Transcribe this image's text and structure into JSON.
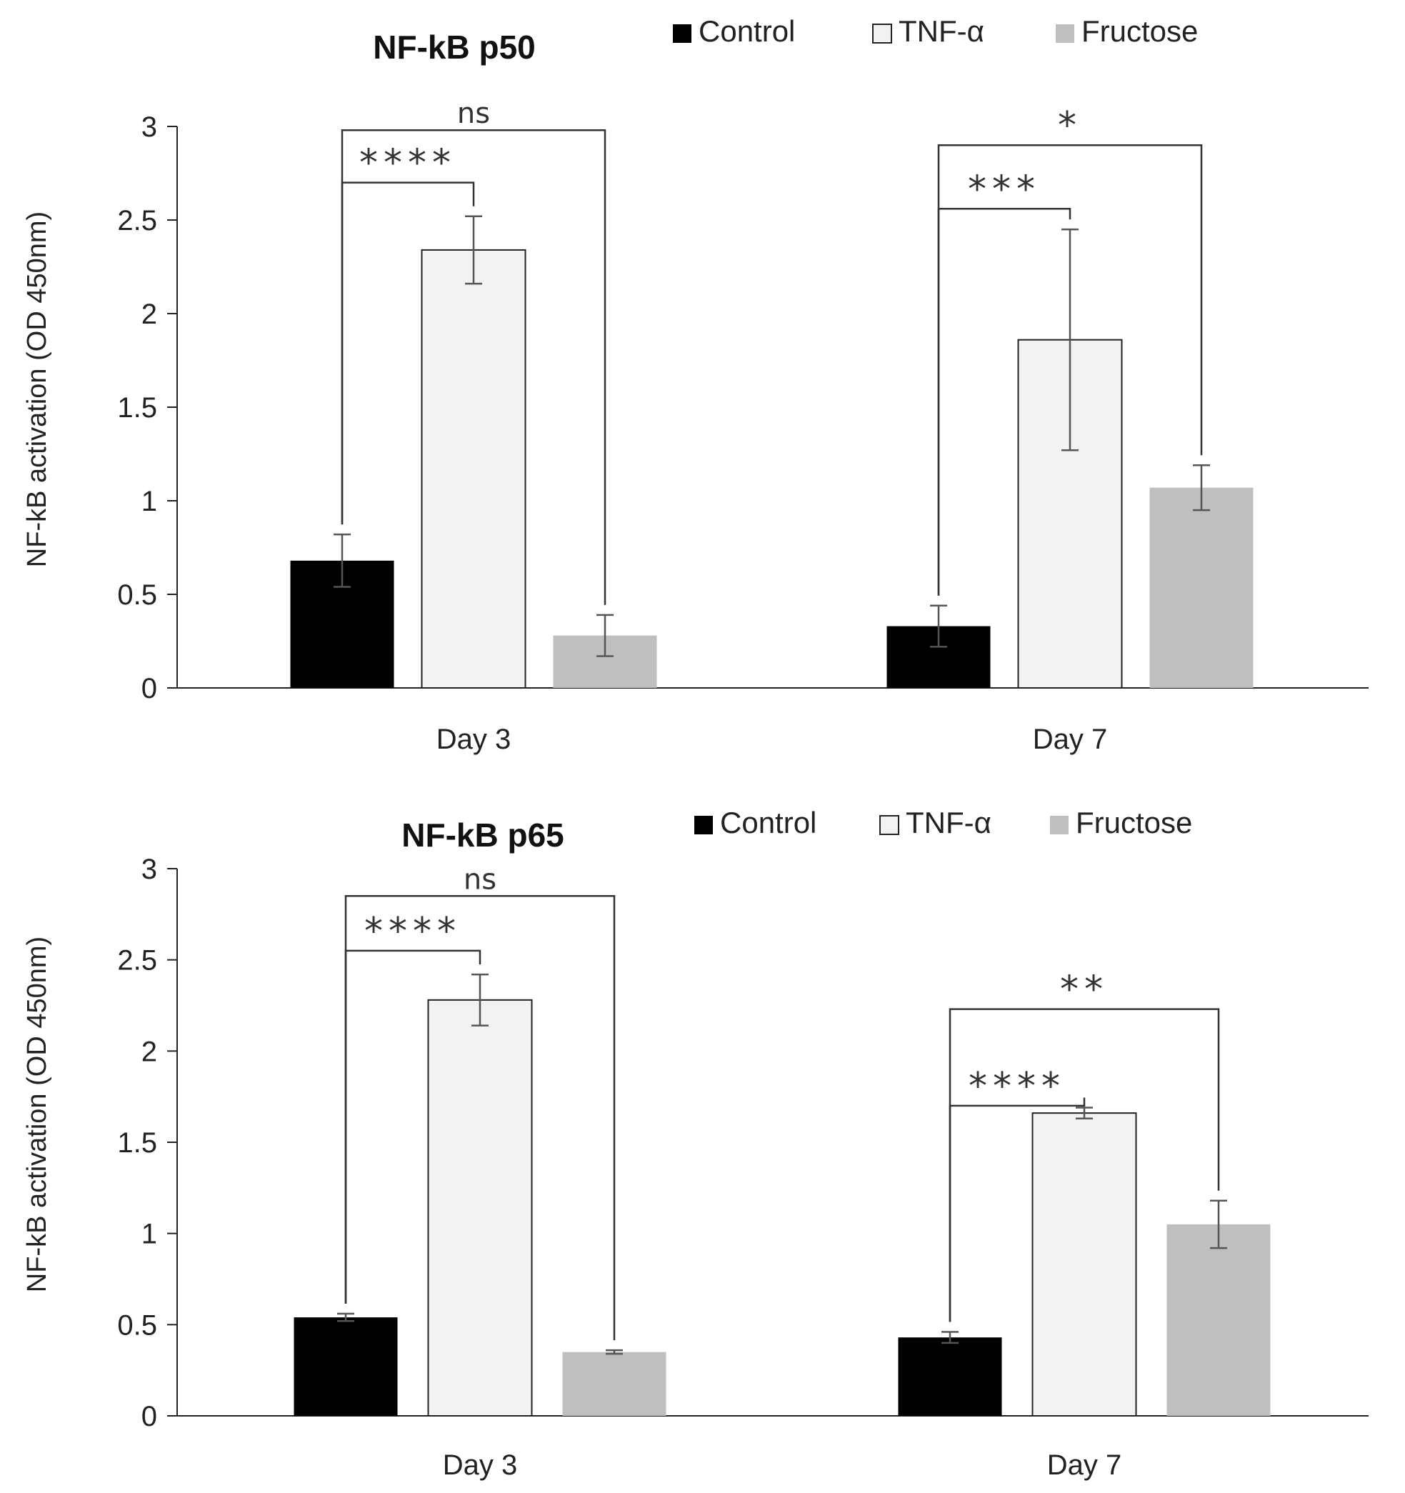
{
  "chart_data": [
    {
      "type": "bar",
      "title": "NF-kB p50",
      "xlabel": "",
      "ylabel": "NF-kB activation (OD 450nm)",
      "ylim": [
        0,
        3
      ],
      "yticks": [
        "0",
        "0.5",
        "1",
        "1.5",
        "2",
        "2.5",
        "3"
      ],
      "categories": [
        "Day 3",
        "Day 7"
      ],
      "legend_position": "top",
      "series": [
        {
          "name": "Control",
          "color": "#000000",
          "values": [
            0.68,
            0.33
          ],
          "errors": [
            0.14,
            0.11
          ]
        },
        {
          "name": "TNF-α",
          "color": "#f2f2f2",
          "values": [
            2.34,
            1.86
          ],
          "errors": [
            0.18,
            0.59
          ]
        },
        {
          "name": "Fructose",
          "color": "#bfbfbf",
          "values": [
            0.28,
            1.07
          ],
          "errors": [
            0.11,
            0.12
          ]
        }
      ],
      "annotations": [
        {
          "label": "****",
          "category": 0,
          "from": 0,
          "to": 1,
          "level": 2.7
        },
        {
          "label": "ns",
          "category": 0,
          "from": 0,
          "to": 2,
          "level": 2.98
        },
        {
          "label": "***",
          "category": 1,
          "from": 0,
          "to": 1,
          "level": 2.56
        },
        {
          "label": "*",
          "category": 1,
          "from": 0,
          "to": 2,
          "level": 2.9
        }
      ]
    },
    {
      "type": "bar",
      "title": "NF-kB p65",
      "xlabel": "",
      "ylabel": "NF-kB activation (OD 450nm)",
      "ylim": [
        0,
        3
      ],
      "yticks": [
        "0",
        "0.5",
        "1",
        "1.5",
        "2",
        "2.5",
        "3"
      ],
      "categories": [
        "Day 3",
        "Day 7"
      ],
      "legend_position": "top",
      "series": [
        {
          "name": "Control",
          "color": "#000000",
          "values": [
            0.54,
            0.43
          ],
          "errors": [
            0.02,
            0.03
          ]
        },
        {
          "name": "TNF-α",
          "color": "#f2f2f2",
          "values": [
            2.28,
            1.66
          ],
          "errors": [
            0.14,
            0.03
          ]
        },
        {
          "name": "Fructose",
          "color": "#bfbfbf",
          "values": [
            0.35,
            1.05
          ],
          "errors": [
            0.01,
            0.13
          ]
        }
      ],
      "annotations": [
        {
          "label": "****",
          "category": 0,
          "from": 0,
          "to": 1,
          "level": 2.55
        },
        {
          "label": "ns",
          "category": 0,
          "from": 0,
          "to": 2,
          "level": 2.85
        },
        {
          "label": "****",
          "category": 1,
          "from": 0,
          "to": 1,
          "level": 1.7
        },
        {
          "label": "**",
          "category": 1,
          "from": 0,
          "to": 2,
          "level": 2.23
        }
      ]
    }
  ]
}
